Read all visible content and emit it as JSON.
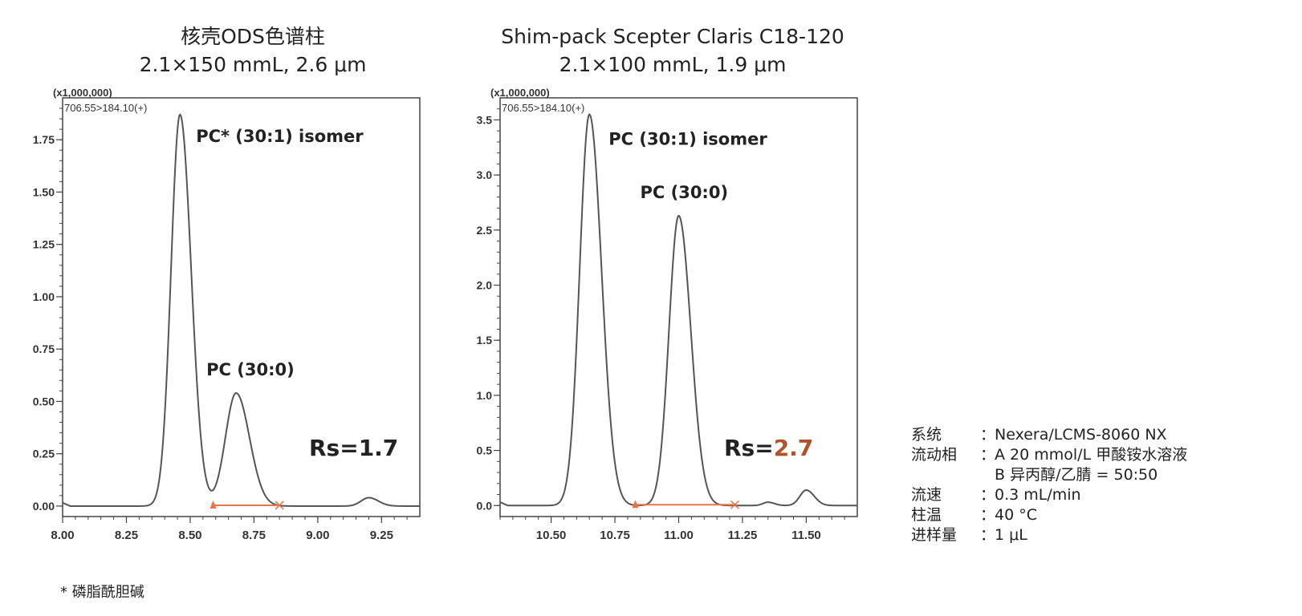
{
  "chart_data": [
    {
      "type": "line",
      "title": "核壳ODS色谱柱",
      "subtitle": "2.1×150 mmL, 2.6 μm",
      "scale_note": "(x1,000,000)",
      "trace_label": "706.55>184.10(+)",
      "xlim": [
        8.0,
        9.4
      ],
      "ylim": [
        -0.05,
        1.95
      ],
      "xticks": [
        "8.00",
        "8.25",
        "8.50",
        "8.75",
        "9.00",
        "9.25"
      ],
      "xtick_values": [
        8.0,
        8.25,
        8.5,
        8.75,
        9.0,
        9.25
      ],
      "yticks": [
        "0.00",
        "0.25",
        "0.50",
        "0.75",
        "1.00",
        "1.25",
        "1.50",
        "1.75"
      ],
      "ytick_values": [
        0.0,
        0.25,
        0.5,
        0.75,
        1.0,
        1.25,
        1.5,
        1.75
      ],
      "baseline": 0.0,
      "peaks": [
        {
          "rt": 8.46,
          "height": 1.87,
          "width": 0.035,
          "label": "PC* (30:1)  isomer"
        },
        {
          "rt": 8.68,
          "height": 0.54,
          "width": 0.042,
          "label": "PC (30:0)"
        },
        {
          "rt": 9.2,
          "height": 0.04,
          "width": 0.03,
          "label": ""
        }
      ],
      "integration": [
        8.59,
        8.85
      ],
      "resolution": {
        "prefix": "Rs=",
        "value": "1.7",
        "color": "#222222"
      }
    },
    {
      "type": "line",
      "title": "Shim-pack Scepter Claris C18-120",
      "subtitle": "2.1×100 mmL, 1.9 μm",
      "scale_note": "(x1,000,000)",
      "trace_label": "706.55>184.10(+)",
      "xlim": [
        10.3,
        11.7
      ],
      "ylim": [
        -0.1,
        3.7
      ],
      "xticks": [
        "10.50",
        "10.75",
        "11.00",
        "11.25",
        "11.50"
      ],
      "xtick_values": [
        10.5,
        10.75,
        11.0,
        11.25,
        11.5
      ],
      "yticks": [
        "0.0",
        "0.5",
        "1.0",
        "1.5",
        "2.0",
        "2.5",
        "3.0",
        "3.5"
      ],
      "ytick_values": [
        0.0,
        0.5,
        1.0,
        1.5,
        2.0,
        2.5,
        3.0,
        3.5
      ],
      "baseline": 0.0,
      "peaks": [
        {
          "rt": 10.65,
          "height": 3.55,
          "width": 0.038,
          "label": "PC (30:1)  isomer"
        },
        {
          "rt": 11.0,
          "height": 2.63,
          "width": 0.038,
          "label": "PC (30:0)"
        },
        {
          "rt": 11.35,
          "height": 0.03,
          "width": 0.02,
          "label": ""
        },
        {
          "rt": 11.5,
          "height": 0.14,
          "width": 0.025,
          "label": ""
        }
      ],
      "integration": [
        10.83,
        11.22
      ],
      "resolution": {
        "prefix": "Rs=",
        "value": "2.7",
        "color": "#b0532a"
      }
    }
  ],
  "footnote": "* 磷脂酰胆碱",
  "conditions": {
    "rows": [
      {
        "label": "系统",
        "value": "Nexera/LCMS-8060 NX"
      },
      {
        "label": "流动相",
        "value": "A 20 mmol/L 甲酸铵水溶液"
      },
      {
        "label": "",
        "value": "B 异丙醇/乙腈 = 50:50"
      },
      {
        "label": "流速",
        "value": "0.3 mL/min"
      },
      {
        "label": "柱温",
        "value": "40 °C"
      },
      {
        "label": "进样量",
        "value": "1 μL"
      }
    ],
    "colon": "："
  },
  "colors": {
    "trace": "#555555",
    "integration": "#e8734a",
    "axis": "#444444"
  }
}
